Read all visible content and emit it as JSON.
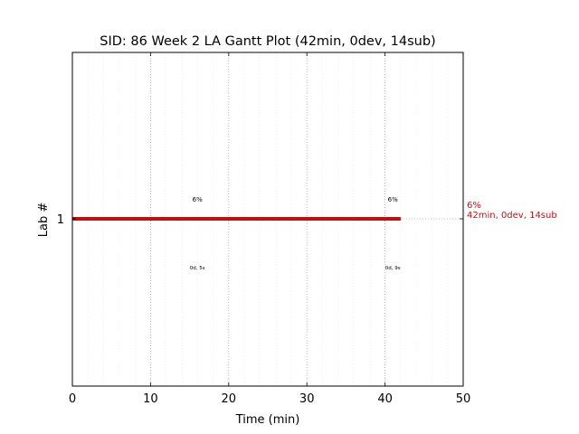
{
  "chart_data": {
    "type": "gantt",
    "title": "SID: 86 Week 2 LA Gantt Plot (42min, 0dev, 14sub)",
    "xlabel": "Time (min)",
    "ylabel": "Lab #",
    "xlim": [
      0,
      50
    ],
    "x_ticks": [
      0,
      10,
      20,
      30,
      40,
      50
    ],
    "x_tick_labels": [
      "0",
      "10",
      "20",
      "30",
      "40",
      "50"
    ],
    "x_minor_step": 2,
    "y_tick_labels": [
      "1"
    ],
    "grid": true,
    "bar_color": "#b81414",
    "right_label_color": "#b81414",
    "rows": [
      {
        "lab": "1",
        "start": 0,
        "end": 42,
        "right_label": [
          "6%",
          "42min, 0dev, 14sub"
        ],
        "markers": [
          {
            "x": 16,
            "top": "6%",
            "bottom": "0d, 5s"
          },
          {
            "x": 41,
            "top": "6%",
            "bottom": "0d, 9s"
          }
        ]
      }
    ]
  }
}
